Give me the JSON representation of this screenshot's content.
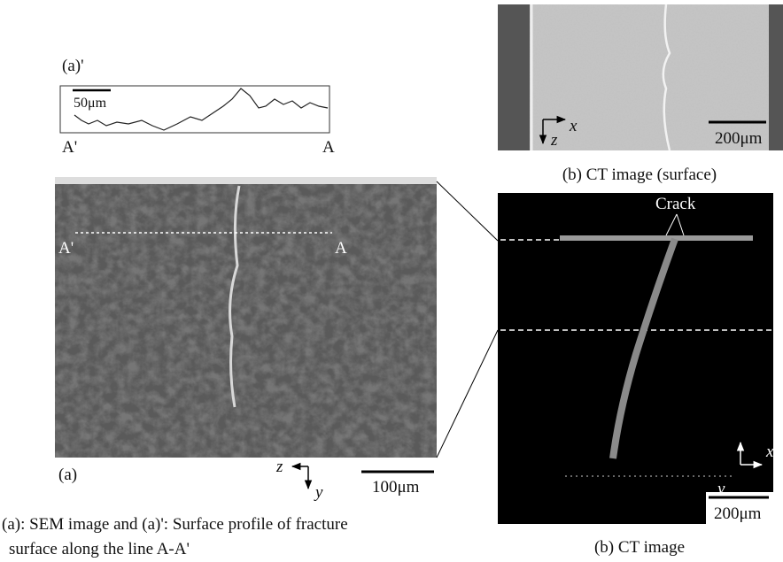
{
  "profile": {
    "title": "(a)'",
    "scale_bar": "50μm",
    "left_label": "A'",
    "right_label": "A"
  },
  "sem": {
    "label": "(a)",
    "line_left": "A'",
    "line_right": "A",
    "axis_z": "z",
    "axis_y": "y",
    "scale_bar": "100μm"
  },
  "caption_a": [
    "(a): SEM image  and (a)': Surface profile of fracture",
    "surface along the line A-A'"
  ],
  "ct_surface": {
    "axis_x": "x",
    "axis_z": "z",
    "scale_bar": "200μm",
    "caption": "(b) CT image (surface)"
  },
  "ct": {
    "annotation": "Crack",
    "axis_y": "y",
    "axis_x": "x",
    "scale_bar": "200μm",
    "caption": "(b) CT image"
  }
}
